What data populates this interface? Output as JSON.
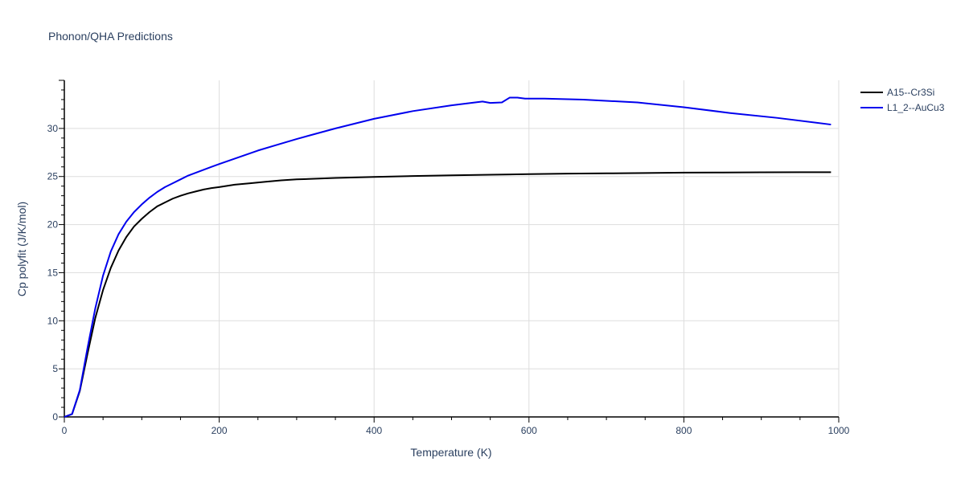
{
  "chart_data": {
    "type": "line",
    "title": "Phonon/QHA Predictions",
    "xlabel": "Temperature (K)",
    "ylabel": "Cp polyfit (J/K/mol)",
    "xlim": [
      0,
      1000
    ],
    "ylim": [
      0,
      35
    ],
    "xticks": [
      0,
      200,
      400,
      600,
      800,
      1000
    ],
    "yticks": [
      0,
      5,
      10,
      15,
      20,
      25,
      30
    ],
    "grid": true,
    "legend_position": "top-right",
    "series": [
      {
        "name": "A15--Cr3Si",
        "color": "#000000",
        "x": [
          0,
          10,
          20,
          30,
          40,
          50,
          60,
          70,
          80,
          90,
          100,
          110,
          120,
          130,
          140,
          150,
          160,
          170,
          180,
          190,
          200,
          220,
          240,
          260,
          280,
          300,
          350,
          400,
          450,
          500,
          550,
          600,
          650,
          700,
          750,
          800,
          850,
          900,
          950,
          990
        ],
        "y": [
          0,
          0.3,
          2.7,
          6.6,
          10.3,
          13.2,
          15.5,
          17.3,
          18.7,
          19.8,
          20.6,
          21.3,
          21.9,
          22.3,
          22.7,
          23.0,
          23.25,
          23.45,
          23.65,
          23.8,
          23.9,
          24.15,
          24.3,
          24.45,
          24.6,
          24.7,
          24.85,
          24.95,
          25.05,
          25.12,
          25.18,
          25.25,
          25.3,
          25.33,
          25.36,
          25.4,
          25.42,
          25.44,
          25.45,
          25.45
        ]
      },
      {
        "name": "L1_2--AuCu3",
        "color": "#0000ee",
        "x": [
          0,
          10,
          20,
          30,
          40,
          50,
          60,
          70,
          80,
          90,
          100,
          110,
          120,
          130,
          140,
          150,
          160,
          170,
          180,
          190,
          200,
          225,
          250,
          275,
          300,
          350,
          400,
          450,
          500,
          540,
          550,
          565,
          575,
          585,
          595,
          620,
          670,
          740,
          800,
          860,
          920,
          990
        ],
        "y": [
          0,
          0.3,
          2.8,
          7.2,
          11.3,
          14.7,
          17.2,
          19.0,
          20.3,
          21.3,
          22.1,
          22.8,
          23.4,
          23.9,
          24.3,
          24.7,
          25.1,
          25.4,
          25.7,
          26.0,
          26.3,
          27.0,
          27.7,
          28.3,
          28.9,
          30.0,
          31.0,
          31.8,
          32.4,
          32.8,
          32.65,
          32.7,
          33.2,
          33.2,
          33.1,
          33.1,
          33.0,
          32.7,
          32.2,
          31.6,
          31.1,
          30.4
        ]
      }
    ]
  }
}
